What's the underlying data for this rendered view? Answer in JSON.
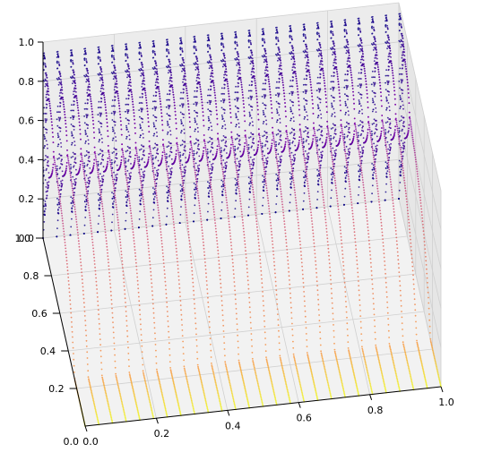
{
  "chart_data": {
    "type": "scatter",
    "projection": "3d",
    "title": "",
    "xlabel": "",
    "ylabel": "",
    "zlabel": "",
    "xlim": [
      0.0,
      1.0
    ],
    "ylim": [
      0.0,
      1.0
    ],
    "zlim": [
      0.0,
      1.0
    ],
    "grid": true,
    "colormap": "plasma",
    "x_tick_labels": [
      "0.0",
      "0.2",
      "0.4",
      "0.6",
      "0.8",
      "1.0"
    ],
    "y_tick_labels": [
      "0.0",
      "0.2",
      "0.4",
      "0.6",
      "0.8",
      "1.0"
    ],
    "z_tick_labels": [
      "0.0",
      "0.2",
      "0.4",
      "0.6",
      "0.8",
      "1.0"
    ],
    "pane_color": "#f2f2f2",
    "grid_color": "#d0d0d0",
    "description_of_data": "Logistic-map bifurcation style surface: for y<0.25 the orbit value is 0; for larger y the fixed point rises to ~0.75 at y=0.75, then period doubling into chaos toward y=1.0; points repeated across x from 0 to 1"
  }
}
